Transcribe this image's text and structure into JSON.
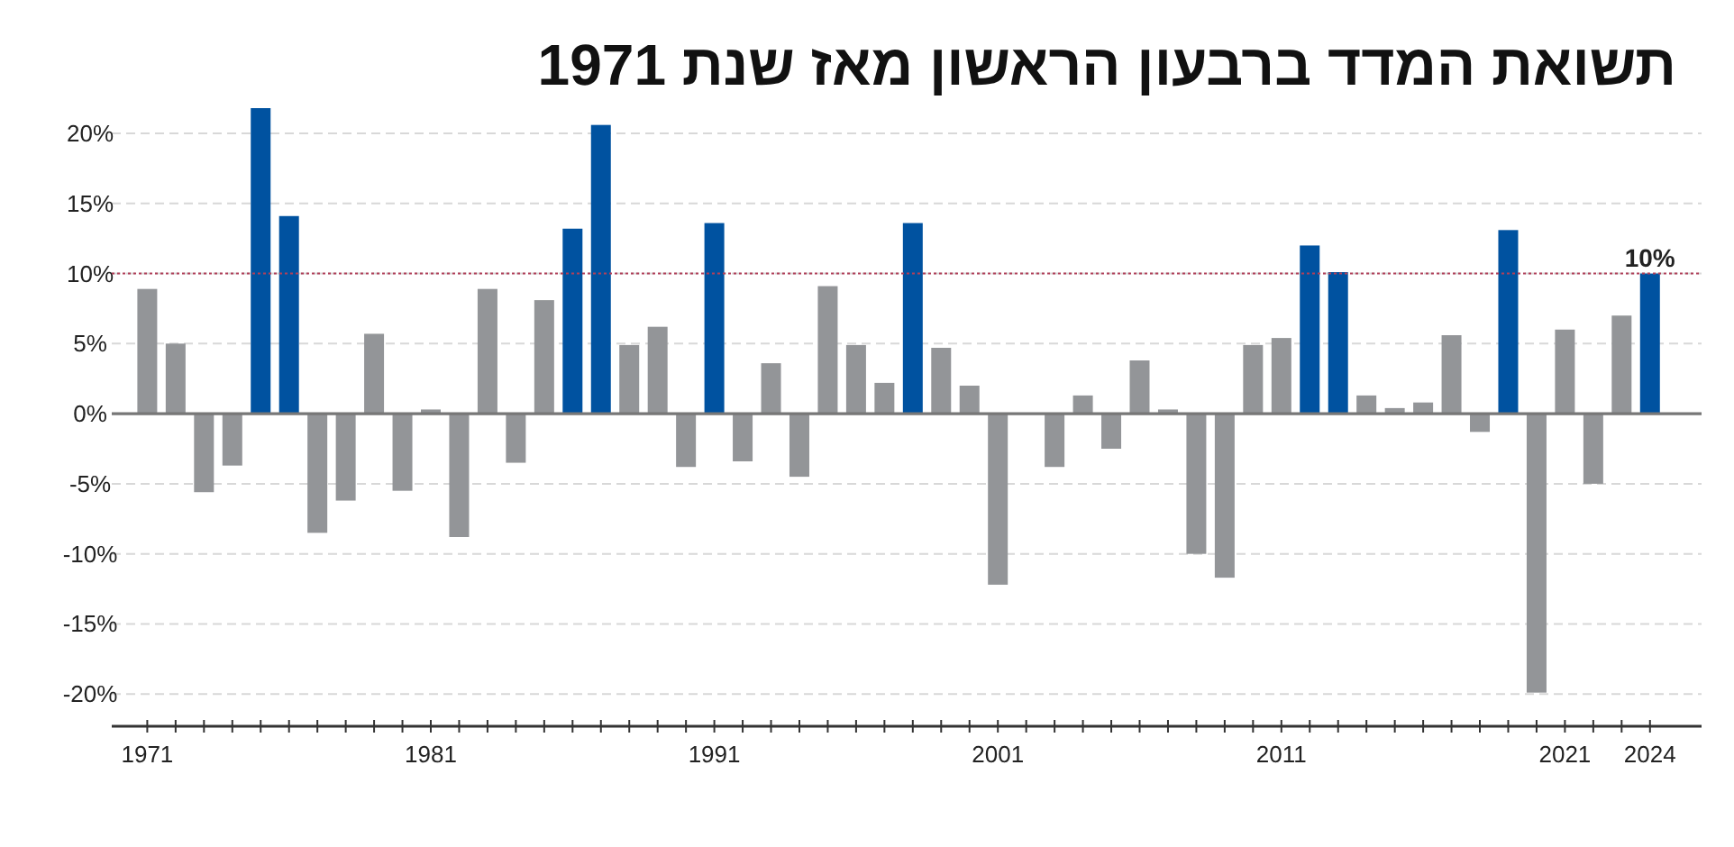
{
  "chart_data": {
    "type": "bar",
    "title": "תשואת המדד ברבעון הראשון מאז שנת 1971",
    "categories": [
      "1971",
      null,
      null,
      null,
      null,
      null,
      null,
      null,
      null,
      null,
      "1981",
      null,
      null,
      null,
      null,
      null,
      null,
      null,
      null,
      null,
      "1991",
      null,
      null,
      null,
      null,
      null,
      null,
      null,
      null,
      null,
      "2001",
      null,
      null,
      null,
      null,
      null,
      null,
      null,
      null,
      null,
      "2011",
      null,
      null,
      null,
      null,
      null,
      null,
      null,
      null,
      null,
      "2021",
      null,
      null,
      "2024"
    ],
    "values": [
      8.9,
      5.0,
      -5.6,
      -3.7,
      21.8,
      14.1,
      -8.5,
      -6.2,
      5.7,
      -5.5,
      0.3,
      -8.8,
      8.9,
      -3.5,
      8.1,
      13.2,
      20.6,
      4.9,
      6.2,
      -3.8,
      13.6,
      -3.4,
      3.6,
      -4.5,
      9.1,
      4.9,
      2.2,
      13.6,
      4.7,
      2.0,
      -12.2,
      null,
      -3.8,
      1.3,
      -2.5,
      3.8,
      0.3,
      -10.0,
      -11.7,
      4.9,
      5.4,
      12.0,
      10.1,
      1.3,
      0.4,
      0.8,
      5.6,
      -1.3,
      13.1,
      -19.9,
      6.0,
      -5.0,
      7.0,
      10.0
    ],
    "colors": [
      "#939598",
      "#939598",
      "#939598",
      "#939598",
      "#0052a0",
      "#0052a0",
      "#939598",
      "#939598",
      "#939598",
      "#939598",
      "#939598",
      "#939598",
      "#939598",
      "#939598",
      "#939598",
      "#0052a0",
      "#0052a0",
      "#939598",
      "#939598",
      "#939598",
      "#0052a0",
      "#939598",
      "#939598",
      "#939598",
      "#939598",
      "#939598",
      "#939598",
      "#0052a0",
      "#939598",
      "#939598",
      "#939598",
      null,
      "#939598",
      "#939598",
      "#939598",
      "#939598",
      "#939598",
      "#939598",
      "#939598",
      "#939598",
      "#939598",
      "#0052a0",
      "#0052a0",
      "#939598",
      "#939598",
      "#939598",
      "#939598",
      "#939598",
      "#0052a0",
      "#939598",
      "#939598",
      "#939598",
      "#939598",
      "#0052a0"
    ],
    "value_labels": [
      null,
      null,
      null,
      null,
      null,
      null,
      null,
      null,
      null,
      null,
      null,
      null,
      null,
      null,
      null,
      null,
      null,
      null,
      null,
      null,
      null,
      null,
      null,
      null,
      null,
      null,
      null,
      null,
      null,
      null,
      null,
      null,
      null,
      null,
      null,
      null,
      null,
      null,
      null,
      null,
      null,
      null,
      null,
      null,
      null,
      null,
      null,
      null,
      null,
      null,
      null,
      null,
      null,
      "10%"
    ],
    "ylim": [
      -22.3,
      21.8
    ],
    "yticks": [
      {
        "value": -20,
        "label": "-20%"
      },
      {
        "value": -15,
        "label": "-15%"
      },
      {
        "value": -10,
        "label": "-10%"
      },
      {
        "value": -5,
        "label": "-5%"
      },
      {
        "value": 0,
        "label": "0%"
      },
      {
        "value": 5,
        "label": "5%"
      },
      {
        "value": 10,
        "label": "10%"
      },
      {
        "value": 15,
        "label": "15%"
      },
      {
        "value": 20,
        "label": "20%"
      }
    ],
    "grid": "y",
    "ref_lines": [
      {
        "axis": "y",
        "value": 10,
        "color": "#b0405a",
        "line_style": "dotted"
      }
    ]
  }
}
